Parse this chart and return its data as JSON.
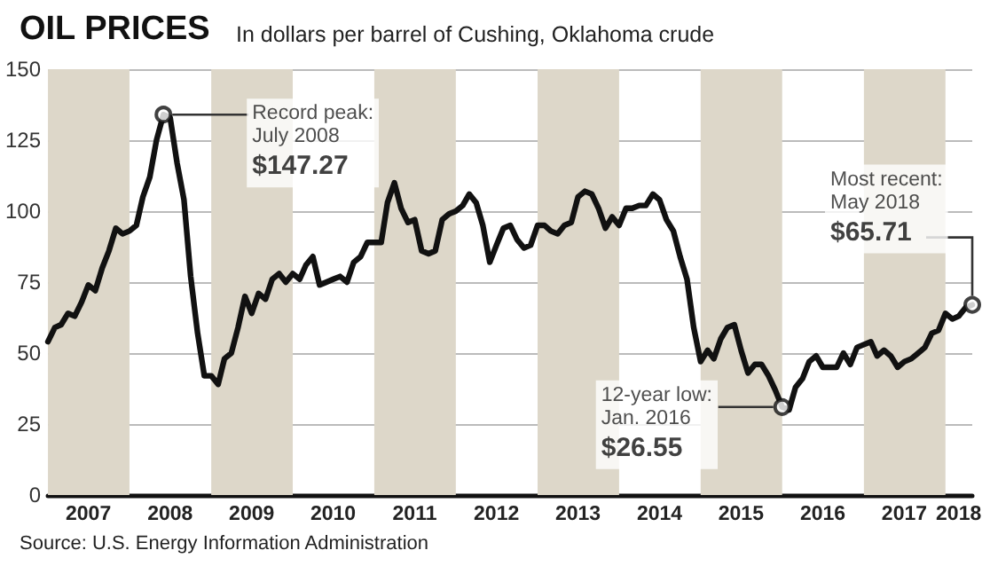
{
  "chart_data": {
    "type": "line",
    "title": "OIL PRICES",
    "subtitle": "In dollars per barrel of Cushing, Oklahoma crude",
    "x": [
      "2007-01",
      "2007-02",
      "2007-03",
      "2007-04",
      "2007-05",
      "2007-06",
      "2007-07",
      "2007-08",
      "2007-09",
      "2007-10",
      "2007-11",
      "2007-12",
      "2008-01",
      "2008-02",
      "2008-03",
      "2008-04",
      "2008-05",
      "2008-06",
      "2008-07",
      "2008-08",
      "2008-09",
      "2008-10",
      "2008-11",
      "2008-12",
      "2009-01",
      "2009-02",
      "2009-03",
      "2009-04",
      "2009-05",
      "2009-06",
      "2009-07",
      "2009-08",
      "2009-09",
      "2009-10",
      "2009-11",
      "2009-12",
      "2010-01",
      "2010-02",
      "2010-03",
      "2010-04",
      "2010-05",
      "2010-06",
      "2010-07",
      "2010-08",
      "2010-09",
      "2010-10",
      "2010-11",
      "2010-12",
      "2011-01",
      "2011-02",
      "2011-03",
      "2011-04",
      "2011-05",
      "2011-06",
      "2011-07",
      "2011-08",
      "2011-09",
      "2011-10",
      "2011-11",
      "2011-12",
      "2012-01",
      "2012-02",
      "2012-03",
      "2012-04",
      "2012-05",
      "2012-06",
      "2012-07",
      "2012-08",
      "2012-09",
      "2012-10",
      "2012-11",
      "2012-12",
      "2013-01",
      "2013-02",
      "2013-03",
      "2013-04",
      "2013-05",
      "2013-06",
      "2013-07",
      "2013-08",
      "2013-09",
      "2013-10",
      "2013-11",
      "2013-12",
      "2014-01",
      "2014-02",
      "2014-03",
      "2014-04",
      "2014-05",
      "2014-06",
      "2014-07",
      "2014-08",
      "2014-09",
      "2014-10",
      "2014-11",
      "2014-12",
      "2015-01",
      "2015-02",
      "2015-03",
      "2015-04",
      "2015-05",
      "2015-06",
      "2015-07",
      "2015-08",
      "2015-09",
      "2015-10",
      "2015-11",
      "2015-12",
      "2016-01",
      "2016-02",
      "2016-03",
      "2016-04",
      "2016-05",
      "2016-06",
      "2016-07",
      "2016-08",
      "2016-09",
      "2016-10",
      "2016-11",
      "2016-12",
      "2017-01",
      "2017-02",
      "2017-03",
      "2017-04",
      "2017-05",
      "2017-06",
      "2017-07",
      "2017-08",
      "2017-09",
      "2017-10",
      "2017-11",
      "2017-12",
      "2018-01",
      "2018-02",
      "2018-03",
      "2018-04",
      "2018-05"
    ],
    "series": [
      {
        "color": "#111111",
        "values": [
          54,
          59,
          60,
          64,
          63,
          68,
          74,
          72,
          80,
          86,
          94,
          92,
          93,
          95,
          105,
          112,
          125,
          134,
          133,
          117,
          104,
          77,
          57,
          42,
          42,
          39,
          48,
          50,
          59,
          70,
          64,
          71,
          69,
          76,
          78,
          75,
          78,
          76,
          81,
          84,
          74,
          75,
          76,
          77,
          75,
          82,
          84,
          89,
          89,
          89,
          103,
          110,
          101,
          96,
          97,
          86,
          85,
          86,
          97,
          99,
          100,
          102,
          106,
          103,
          95,
          82,
          88,
          94,
          95,
          90,
          87,
          88,
          95,
          95,
          93,
          92,
          95,
          96,
          105,
          107,
          106,
          101,
          94,
          98,
          95,
          101,
          101,
          102,
          102,
          106,
          104,
          97,
          93,
          84,
          76,
          59,
          47,
          51,
          48,
          55,
          59,
          60,
          51,
          43,
          46,
          46,
          42,
          37,
          31,
          30,
          38,
          41,
          47,
          49,
          45,
          45,
          45,
          50,
          46,
          52,
          53,
          54,
          49,
          51,
          49,
          45,
          47,
          48,
          50,
          52,
          57,
          58,
          64,
          62,
          63,
          66,
          67
        ]
      }
    ],
    "xlim": [
      "2007-01",
      "2018-05"
    ],
    "xticks": [
      {
        "value": "2007-07",
        "label": "2007"
      },
      {
        "value": "2008-07",
        "label": "2008"
      },
      {
        "value": "2009-07",
        "label": "2009"
      },
      {
        "value": "2010-07",
        "label": "2010"
      },
      {
        "value": "2011-07",
        "label": "2011"
      },
      {
        "value": "2012-07",
        "label": "2012"
      },
      {
        "value": "2013-07",
        "label": "2013"
      },
      {
        "value": "2014-07",
        "label": "2014"
      },
      {
        "value": "2015-07",
        "label": "2015"
      },
      {
        "value": "2016-07",
        "label": "2016"
      },
      {
        "value": "2017-07",
        "label": "2017"
      },
      {
        "value": "2018-03",
        "label": "2018"
      }
    ],
    "ylim": [
      0,
      150
    ],
    "yticks": [
      0,
      25,
      50,
      75,
      100,
      125,
      150
    ],
    "grid": "y",
    "marker": "none",
    "line_style": "solid",
    "bands": [
      {
        "axis": "x",
        "from": "2007-01",
        "to": "2008-01",
        "color": "#ddd7c9"
      },
      {
        "axis": "x",
        "from": "2009-01",
        "to": "2010-01",
        "color": "#ddd7c9"
      },
      {
        "axis": "x",
        "from": "2011-01",
        "to": "2012-01",
        "color": "#ddd7c9"
      },
      {
        "axis": "x",
        "from": "2013-01",
        "to": "2014-01",
        "color": "#ddd7c9"
      },
      {
        "axis": "x",
        "from": "2015-01",
        "to": "2016-01",
        "color": "#ddd7c9"
      },
      {
        "axis": "x",
        "from": "2017-01",
        "to": "2018-01",
        "color": "#ddd7c9"
      }
    ],
    "annotations": [
      {
        "text": "Record peak:\nJuly 2008\n$147.27",
        "x": "2008-06",
        "y": 134
      },
      {
        "text": "12-year low:\nJan. 2016\n$26.55",
        "x": "2016-01",
        "y": 31
      },
      {
        "text": "Most recent:\nMay 2018\n$65.71",
        "x": "2018-05",
        "y": 67
      },
      "Source: U.S. Energy Information Administration"
    ]
  }
}
